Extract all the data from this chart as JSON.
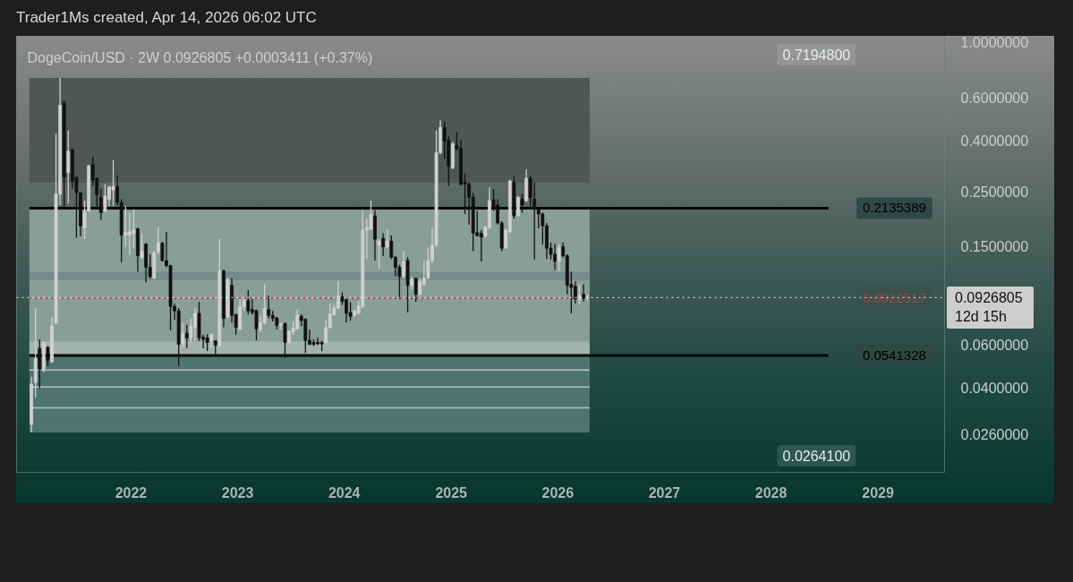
{
  "chart_data": {
    "type": "candlestick",
    "title": "DogeCoin/USD · 2W  0.0926805  +0.0003411 (+0.37%)",
    "annotations": [
      "Trader1Ms created, Apr 14, 2026 06:02 UTC",
      "0.7194800",
      "0.0264100"
    ],
    "log": true,
    "xlim": [
      "2020-12-05",
      "2029-08-17"
    ],
    "xticks": [
      "2022",
      "2023",
      "2024",
      "2025",
      "2026",
      "2027",
      "2028",
      "2029"
    ],
    "ylim": [
      0.0182,
      1.06
    ],
    "yticks": [
      {
        "value": 1,
        "label": "1.0000000"
      },
      {
        "value": 0.6,
        "label": "0.6000000"
      },
      {
        "value": 0.4,
        "label": "0.4000000"
      },
      {
        "value": 0.25,
        "label": "0.2500000"
      },
      {
        "value": 0.15,
        "label": "0.1500000"
      },
      {
        "value": 0.06,
        "label": "0.0600000"
      },
      {
        "value": 0.04,
        "label": "0.0400000"
      },
      {
        "value": 0.026,
        "label": "0.0260000"
      }
    ],
    "bands": [
      {
        "axis": "y",
        "from": 0.271,
        "to": 0.719,
        "color": "#4f5655"
      },
      {
        "axis": "y",
        "from": 0.0541328,
        "to": 0.2135389,
        "color": "#8a9e99"
      },
      {
        "axis": "y",
        "from": 0.109,
        "to": 0.118,
        "color": "#768c88"
      },
      {
        "axis": "y",
        "from": 0.0541328,
        "to": 0.0615,
        "color": "#a2b3ae"
      },
      {
        "axis": "y",
        "from": 0.02641,
        "to": 0.0541328,
        "color": "#4e756d"
      }
    ],
    "ref_lines": [
      {
        "axis": "y",
        "value": 0.2135389,
        "label": "0.2135389",
        "color": "#000000",
        "line_style": "solid"
      },
      {
        "axis": "y",
        "value": 0.0541328,
        "label": "0.0541328",
        "color": "#000000",
        "line_style": "solid"
      },
      {
        "axis": "y",
        "value": 0.0922517,
        "label": "0.0922517",
        "color": "#c8404c",
        "line_style": "dotted"
      },
      {
        "axis": "y",
        "value": 0.0926805,
        "label": "0.0926805\n12d 15h",
        "color": "#e6e6e6",
        "line_style": "dotted"
      },
      {
        "axis": "y",
        "value": 0.0472,
        "color": "#b6c5c1",
        "line_style": "solid"
      },
      {
        "axis": "y",
        "value": 0.0403,
        "color": "#b6c5c1",
        "line_style": "solid"
      },
      {
        "axis": "y",
        "value": 0.0332,
        "color": "#b6c5c1",
        "line_style": "solid"
      }
    ],
    "x": [
      "2021-01-25",
      "2021-02-08",
      "2021-02-22",
      "2021-03-08",
      "2021-03-22",
      "2021-04-05",
      "2021-04-19",
      "2021-05-03",
      "2021-05-17",
      "2021-05-31",
      "2021-06-14",
      "2021-06-28",
      "2021-07-12",
      "2021-07-26",
      "2021-08-09",
      "2021-08-23",
      "2021-09-06",
      "2021-09-20",
      "2021-10-04",
      "2021-10-18",
      "2021-11-01",
      "2021-11-15",
      "2021-11-29",
      "2021-12-13",
      "2021-12-27",
      "2022-01-10",
      "2022-01-24",
      "2022-02-07",
      "2022-02-21",
      "2022-03-07",
      "2022-03-21",
      "2022-04-04",
      "2022-04-18",
      "2022-05-02",
      "2022-05-16",
      "2022-05-30",
      "2022-06-13",
      "2022-06-27",
      "2022-07-11",
      "2022-07-25",
      "2022-08-08",
      "2022-08-22",
      "2022-09-05",
      "2022-09-19",
      "2022-10-03",
      "2022-10-17",
      "2022-10-31",
      "2022-11-14",
      "2022-11-28",
      "2022-12-12",
      "2022-12-26",
      "2023-01-09",
      "2023-01-23",
      "2023-02-06",
      "2023-02-20",
      "2023-03-06",
      "2023-03-20",
      "2023-04-03",
      "2023-04-17",
      "2023-05-01",
      "2023-05-15",
      "2023-05-29",
      "2023-06-12",
      "2023-06-26",
      "2023-07-10",
      "2023-07-24",
      "2023-08-07",
      "2023-08-21",
      "2023-09-04",
      "2023-09-18",
      "2023-10-02",
      "2023-10-16",
      "2023-10-30",
      "2023-11-13",
      "2023-11-27",
      "2023-12-11",
      "2023-12-25",
      "2024-01-08",
      "2024-01-22",
      "2024-02-05",
      "2024-02-19",
      "2024-03-04",
      "2024-03-18",
      "2024-04-01",
      "2024-04-15",
      "2024-04-29",
      "2024-05-13",
      "2024-05-27",
      "2024-06-10",
      "2024-06-24",
      "2024-07-08",
      "2024-07-22",
      "2024-08-05",
      "2024-08-19",
      "2024-09-02",
      "2024-09-16",
      "2024-09-30",
      "2024-10-14",
      "2024-10-28",
      "2024-11-11",
      "2024-11-25",
      "2024-12-09",
      "2024-12-23",
      "2025-01-06",
      "2025-01-20",
      "2025-02-03",
      "2025-02-17",
      "2025-03-03",
      "2025-03-17",
      "2025-03-31",
      "2025-04-14",
      "2025-04-28",
      "2025-05-12",
      "2025-05-26",
      "2025-06-09",
      "2025-06-23",
      "2025-07-07",
      "2025-07-21",
      "2025-08-04",
      "2025-08-18",
      "2025-09-01",
      "2025-09-15",
      "2025-09-29",
      "2025-10-13",
      "2025-10-27",
      "2025-11-10",
      "2025-11-24",
      "2025-12-08",
      "2025-12-22",
      "2026-01-05",
      "2026-01-19",
      "2026-02-02",
      "2026-02-16",
      "2026-03-02",
      "2026-03-16",
      "2026-03-30",
      "2026-04-13"
    ],
    "ohlc": [
      [
        0.0284,
        0.0444,
        0.02641,
        0.0414
      ],
      [
        0.042,
        0.0842,
        0.0365,
        0.0525
      ],
      [
        0.0578,
        0.0629,
        0.0399,
        0.0476
      ],
      [
        0.0476,
        0.0615,
        0.0463,
        0.0611
      ],
      [
        0.0583,
        0.059,
        0.049,
        0.0518
      ],
      [
        0.051,
        0.0775,
        0.0503,
        0.0713
      ],
      [
        0.0733,
        0.428,
        0.0723,
        0.2435
      ],
      [
        0.2435,
        0.71948,
        0.2197,
        0.558
      ],
      [
        0.569,
        0.582,
        0.2137,
        0.286
      ],
      [
        0.298,
        0.44,
        0.2228,
        0.363
      ],
      [
        0.368,
        0.373,
        0.256,
        0.275
      ],
      [
        0.285,
        0.286,
        0.162,
        0.246
      ],
      [
        0.246,
        0.247,
        0.164,
        0.181
      ],
      [
        0.178,
        0.229,
        0.16,
        0.205
      ],
      [
        0.208,
        0.32,
        0.205,
        0.317
      ],
      [
        0.32,
        0.345,
        0.263,
        0.278
      ],
      [
        0.282,
        0.285,
        0.217,
        0.242
      ],
      [
        0.236,
        0.256,
        0.191,
        0.205
      ],
      [
        0.208,
        0.267,
        0.205,
        0.239
      ],
      [
        0.232,
        0.263,
        0.217,
        0.26
      ],
      [
        0.253,
        0.334,
        0.217,
        0.261
      ],
      [
        0.261,
        0.29,
        0.22,
        0.226
      ],
      [
        0.225,
        0.232,
        0.1285,
        0.166
      ],
      [
        0.166,
        0.217,
        0.149,
        0.17
      ],
      [
        0.166,
        0.205,
        0.139,
        0.171
      ],
      [
        0.169,
        0.211,
        0.147,
        0.174
      ],
      [
        0.176,
        0.178,
        0.118,
        0.137
      ],
      [
        0.135,
        0.169,
        0.133,
        0.143
      ],
      [
        0.153,
        0.154,
        0.107,
        0.123
      ],
      [
        0.123,
        0.139,
        0.111,
        0.113
      ],
      [
        0.111,
        0.143,
        0.1106,
        0.141
      ],
      [
        0.142,
        0.179,
        0.139,
        0.155
      ],
      [
        0.154,
        0.156,
        0.13,
        0.131
      ],
      [
        0.131,
        0.171,
        0.123,
        0.125
      ],
      [
        0.125,
        0.126,
        0.0684,
        0.0854
      ],
      [
        0.0854,
        0.0878,
        0.0753,
        0.0819
      ],
      [
        0.0819,
        0.0842,
        0.049,
        0.06
      ],
      [
        0.0603,
        0.0733,
        0.0586,
        0.0665
      ],
      [
        0.0665,
        0.072,
        0.0578,
        0.0638
      ],
      [
        0.0638,
        0.0764,
        0.0611,
        0.0709
      ],
      [
        0.0703,
        0.0842,
        0.062,
        0.0801
      ],
      [
        0.0801,
        0.089,
        0.062,
        0.0638
      ],
      [
        0.0641,
        0.0656,
        0.0578,
        0.0629
      ],
      [
        0.0638,
        0.0659,
        0.0563,
        0.0611
      ],
      [
        0.062,
        0.0665,
        0.0586,
        0.0656
      ],
      [
        0.062,
        0.0623,
        0.055,
        0.0595
      ],
      [
        0.0595,
        0.16,
        0.0586,
        0.119
      ],
      [
        0.119,
        0.1205,
        0.0703,
        0.0764
      ],
      [
        0.0775,
        0.111,
        0.0764,
        0.11
      ],
      [
        0.104,
        0.111,
        0.0733,
        0.0786
      ],
      [
        0.0792,
        0.0797,
        0.0656,
        0.0703
      ],
      [
        0.0693,
        0.0915,
        0.0684,
        0.0854
      ],
      [
        0.0854,
        0.0915,
        0.0819,
        0.091
      ],
      [
        0.0902,
        0.0995,
        0.0792,
        0.0819
      ],
      [
        0.083,
        0.0915,
        0.0792,
        0.0808
      ],
      [
        0.0823,
        0.083,
        0.0623,
        0.0693
      ],
      [
        0.0689,
        0.0786,
        0.0674,
        0.0736
      ],
      [
        0.0733,
        0.105,
        0.0723,
        0.0837
      ],
      [
        0.083,
        0.0946,
        0.0764,
        0.0786
      ],
      [
        0.0786,
        0.0819,
        0.0743,
        0.0764
      ],
      [
        0.0768,
        0.0775,
        0.0689,
        0.0717
      ],
      [
        0.0717,
        0.0733,
        0.0689,
        0.0727
      ],
      [
        0.0729,
        0.0733,
        0.0529,
        0.0611
      ],
      [
        0.0611,
        0.068,
        0.0603,
        0.0678
      ],
      [
        0.0674,
        0.0743,
        0.0656,
        0.0697
      ],
      [
        0.0693,
        0.083,
        0.0689,
        0.0786
      ],
      [
        0.0779,
        0.0792,
        0.0713,
        0.0749
      ],
      [
        0.0757,
        0.0764,
        0.0555,
        0.0623
      ],
      [
        0.0623,
        0.0689,
        0.0595,
        0.06
      ],
      [
        0.0611,
        0.0629,
        0.059,
        0.06
      ],
      [
        0.0611,
        0.0638,
        0.0595,
        0.0603
      ],
      [
        0.0611,
        0.062,
        0.0563,
        0.0603
      ],
      [
        0.0611,
        0.0753,
        0.0603,
        0.0703
      ],
      [
        0.0703,
        0.0878,
        0.0693,
        0.0797
      ],
      [
        0.0792,
        0.0866,
        0.0786,
        0.0842
      ],
      [
        0.0842,
        0.108,
        0.083,
        0.0941
      ],
      [
        0.0936,
        0.0973,
        0.0866,
        0.0895
      ],
      [
        0.091,
        0.0915,
        0.0736,
        0.0801
      ],
      [
        0.0808,
        0.089,
        0.0749,
        0.0779
      ],
      [
        0.0786,
        0.083,
        0.0775,
        0.0819
      ],
      [
        0.0801,
        0.0902,
        0.0797,
        0.0858
      ],
      [
        0.0854,
        0.208,
        0.0842,
        0.174
      ],
      [
        0.174,
        0.194,
        0.133,
        0.178
      ],
      [
        0.176,
        0.229,
        0.174,
        0.201
      ],
      [
        0.199,
        0.21,
        0.131,
        0.16
      ],
      [
        0.151,
        0.16,
        0.121,
        0.157
      ],
      [
        0.161,
        0.169,
        0.137,
        0.149
      ],
      [
        0.149,
        0.175,
        0.147,
        0.157
      ],
      [
        0.157,
        0.166,
        0.133,
        0.135
      ],
      [
        0.135,
        0.137,
        0.113,
        0.123
      ],
      [
        0.123,
        0.126,
        0.0915,
        0.113
      ],
      [
        0.113,
        0.143,
        0.111,
        0.13
      ],
      [
        0.131,
        0.135,
        0.0808,
        0.104
      ],
      [
        0.104,
        0.113,
        0.1,
        0.11
      ],
      [
        0.111,
        0.1115,
        0.089,
        0.0956
      ],
      [
        0.0956,
        0.111,
        0.0946,
        0.108
      ],
      [
        0.105,
        0.131,
        0.103,
        0.111
      ],
      [
        0.111,
        0.147,
        0.11,
        0.131
      ],
      [
        0.131,
        0.178,
        0.128,
        0.151
      ],
      [
        0.151,
        0.44,
        0.149,
        0.358
      ],
      [
        0.358,
        0.485,
        0.353,
        0.453
      ],
      [
        0.453,
        0.479,
        0.338,
        0.4
      ],
      [
        0.402,
        0.417,
        0.263,
        0.316
      ],
      [
        0.311,
        0.397,
        0.307,
        0.389
      ],
      [
        0.383,
        0.434,
        0.366,
        0.373
      ],
      [
        0.373,
        0.402,
        0.263,
        0.267
      ],
      [
        0.271,
        0.294,
        0.202,
        0.267
      ],
      [
        0.267,
        0.271,
        0.183,
        0.236
      ],
      [
        0.236,
        0.246,
        0.143,
        0.169
      ],
      [
        0.17,
        0.208,
        0.164,
        0.165
      ],
      [
        0.169,
        0.174,
        0.13,
        0.163
      ],
      [
        0.165,
        0.181,
        0.162,
        0.179
      ],
      [
        0.178,
        0.26,
        0.176,
        0.229
      ],
      [
        0.231,
        0.255,
        0.208,
        0.217
      ],
      [
        0.22,
        0.232,
        0.183,
        0.186
      ],
      [
        0.186,
        0.189,
        0.143,
        0.147
      ],
      [
        0.147,
        0.176,
        0.146,
        0.174
      ],
      [
        0.171,
        0.278,
        0.169,
        0.275
      ],
      [
        0.271,
        0.288,
        0.194,
        0.199
      ],
      [
        0.199,
        0.239,
        0.197,
        0.236
      ],
      [
        0.232,
        0.244,
        0.205,
        0.22
      ],
      [
        0.229,
        0.307,
        0.226,
        0.282
      ],
      [
        0.282,
        0.288,
        0.217,
        0.236
      ],
      [
        0.232,
        0.271,
        0.132,
        0.211
      ],
      [
        0.212,
        0.214,
        0.177,
        0.202
      ],
      [
        0.202,
        0.205,
        0.152,
        0.181
      ],
      [
        0.181,
        0.186,
        0.133,
        0.147
      ],
      [
        0.147,
        0.155,
        0.132,
        0.139
      ],
      [
        0.139,
        0.153,
        0.12,
        0.13
      ],
      [
        0.13,
        0.153,
        0.118,
        0.148
      ],
      [
        0.149,
        0.155,
        0.135,
        0.137
      ],
      [
        0.137,
        0.139,
        0.0956,
        0.104
      ],
      [
        0.105,
        0.118,
        0.0801,
        0.102
      ],
      [
        0.103,
        0.108,
        0.0878,
        0.0915
      ],
      [
        0.091,
        0.105,
        0.0871,
        0.0946
      ],
      [
        0.0956,
        0.105,
        0.0895,
        0.0923
      ],
      [
        0.0923,
        0.0954,
        0.0902,
        0.0926805
      ]
    ],
    "colors": [
      "#d0d0d0",
      "#d0d0d0",
      "#111111",
      "#d0d0d0",
      "#111111",
      "#d0d0d0",
      "#d0d0d0",
      "#d0d0d0",
      "#111111",
      "#d0d0d0",
      "#111111",
      "#111111",
      "#111111",
      "#d0d0d0",
      "#d0d0d0",
      "#111111",
      "#111111",
      "#111111",
      "#d0d0d0",
      "#d0d0d0",
      "#d0d0d0",
      "#111111",
      "#111111",
      "#d0d0d0",
      "#d0d0d0",
      "#d0d0d0",
      "#111111",
      "#d0d0d0",
      "#111111",
      "#111111",
      "#d0d0d0",
      "#d0d0d0",
      "#111111",
      "#111111",
      "#111111",
      "#111111",
      "#111111",
      "#d0d0d0",
      "#111111",
      "#d0d0d0",
      "#d0d0d0",
      "#111111",
      "#111111",
      "#111111",
      "#d0d0d0",
      "#111111",
      "#d0d0d0",
      "#111111",
      "#d0d0d0",
      "#111111",
      "#111111",
      "#d0d0d0",
      "#d0d0d0",
      "#111111",
      "#111111",
      "#111111",
      "#d0d0d0",
      "#d0d0d0",
      "#111111",
      "#111111",
      "#111111",
      "#d0d0d0",
      "#111111",
      "#d0d0d0",
      "#d0d0d0",
      "#d0d0d0",
      "#111111",
      "#111111",
      "#111111",
      "#111111",
      "#111111",
      "#111111",
      "#d0d0d0",
      "#d0d0d0",
      "#d0d0d0",
      "#d0d0d0",
      "#111111",
      "#111111",
      "#111111",
      "#d0d0d0",
      "#d0d0d0",
      "#d0d0d0",
      "#d0d0d0",
      "#d0d0d0",
      "#111111",
      "#d0d0d0",
      "#111111",
      "#d0d0d0",
      "#111111",
      "#111111",
      "#111111",
      "#d0d0d0",
      "#111111",
      "#d0d0d0",
      "#111111",
      "#d0d0d0",
      "#d0d0d0",
      "#d0d0d0",
      "#d0d0d0",
      "#d0d0d0",
      "#d0d0d0",
      "#111111",
      "#111111",
      "#d0d0d0",
      "#111111",
      "#111111",
      "#111111",
      "#111111",
      "#111111",
      "#111111",
      "#111111",
      "#d0d0d0",
      "#d0d0d0",
      "#111111",
      "#111111",
      "#111111",
      "#d0d0d0",
      "#d0d0d0",
      "#111111",
      "#d0d0d0",
      "#111111",
      "#d0d0d0",
      "#111111",
      "#111111",
      "#111111",
      "#111111",
      "#111111",
      "#111111",
      "#111111",
      "#d0d0d0",
      "#111111",
      "#111111",
      "#111111",
      "#111111",
      "#d0d0d0",
      "#111111",
      "#d0d0d0"
    ]
  }
}
